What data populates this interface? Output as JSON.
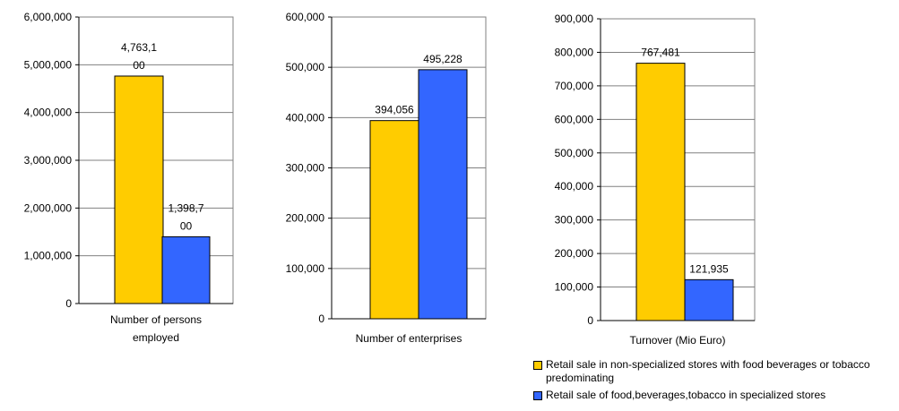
{
  "colors": {
    "series1": "#FFCC00",
    "series2": "#3366FF",
    "grid": "#808080"
  },
  "legend": {
    "placement": "bottom-right",
    "items": [
      "Retail sale in non-specialized stores with food beverages or tobacco predominating",
      "Retail sale of food,beverages,tobacco in specialized stores"
    ]
  },
  "chart_data": [
    {
      "type": "bar",
      "categories": [
        "Number of persons employed"
      ],
      "series": [
        {
          "name": "Retail sale in non-specialized stores with food beverages or tobacco predominating",
          "values": [
            4763100
          ]
        },
        {
          "name": "Retail sale of food,beverages,tobacco in specialized stores",
          "values": [
            1398700
          ]
        }
      ],
      "data_labels": [
        [
          "4,763,1",
          "00"
        ],
        [
          "1,398,7",
          "00"
        ]
      ],
      "yticks": [
        "0",
        "1,000,000",
        "2,000,000",
        "3,000,000",
        "4,000,000",
        "5,000,000",
        "6,000,000"
      ],
      "ylim": [
        0,
        6000000
      ],
      "xlabel_lines": [
        "Number of persons",
        "employed"
      ],
      "grid": true
    },
    {
      "type": "bar",
      "categories": [
        "Number of enterprises"
      ],
      "series": [
        {
          "name": "Retail sale in non-specialized stores with food beverages or tobacco predominating",
          "values": [
            394056
          ]
        },
        {
          "name": "Retail sale of food,beverages,tobacco in specialized stores",
          "values": [
            495228
          ]
        }
      ],
      "data_labels": [
        [
          "394,056"
        ],
        [
          "495,228"
        ]
      ],
      "yticks": [
        "0",
        "100,000",
        "200,000",
        "300,000",
        "400,000",
        "500,000",
        "600,000"
      ],
      "ylim": [
        0,
        600000
      ],
      "xlabel_lines": [
        "Number of enterprises"
      ],
      "grid": true
    },
    {
      "type": "bar",
      "categories": [
        "Turnover (Mio Euro)"
      ],
      "series": [
        {
          "name": "Retail sale in non-specialized stores with food beverages or tobacco predominating",
          "values": [
            767481
          ]
        },
        {
          "name": "Retail sale of food,beverages,tobacco in specialized stores",
          "values": [
            121935
          ]
        }
      ],
      "data_labels": [
        [
          "767,481"
        ],
        [
          "121,935"
        ]
      ],
      "yticks": [
        "0",
        "100,000",
        "200,000",
        "300,000",
        "400,000",
        "500,000",
        "600,000",
        "700,000",
        "800,000",
        "900,000"
      ],
      "ylim": [
        0,
        900000
      ],
      "xlabel_lines": [
        "Turnover (Mio Euro)"
      ],
      "grid": true
    }
  ]
}
